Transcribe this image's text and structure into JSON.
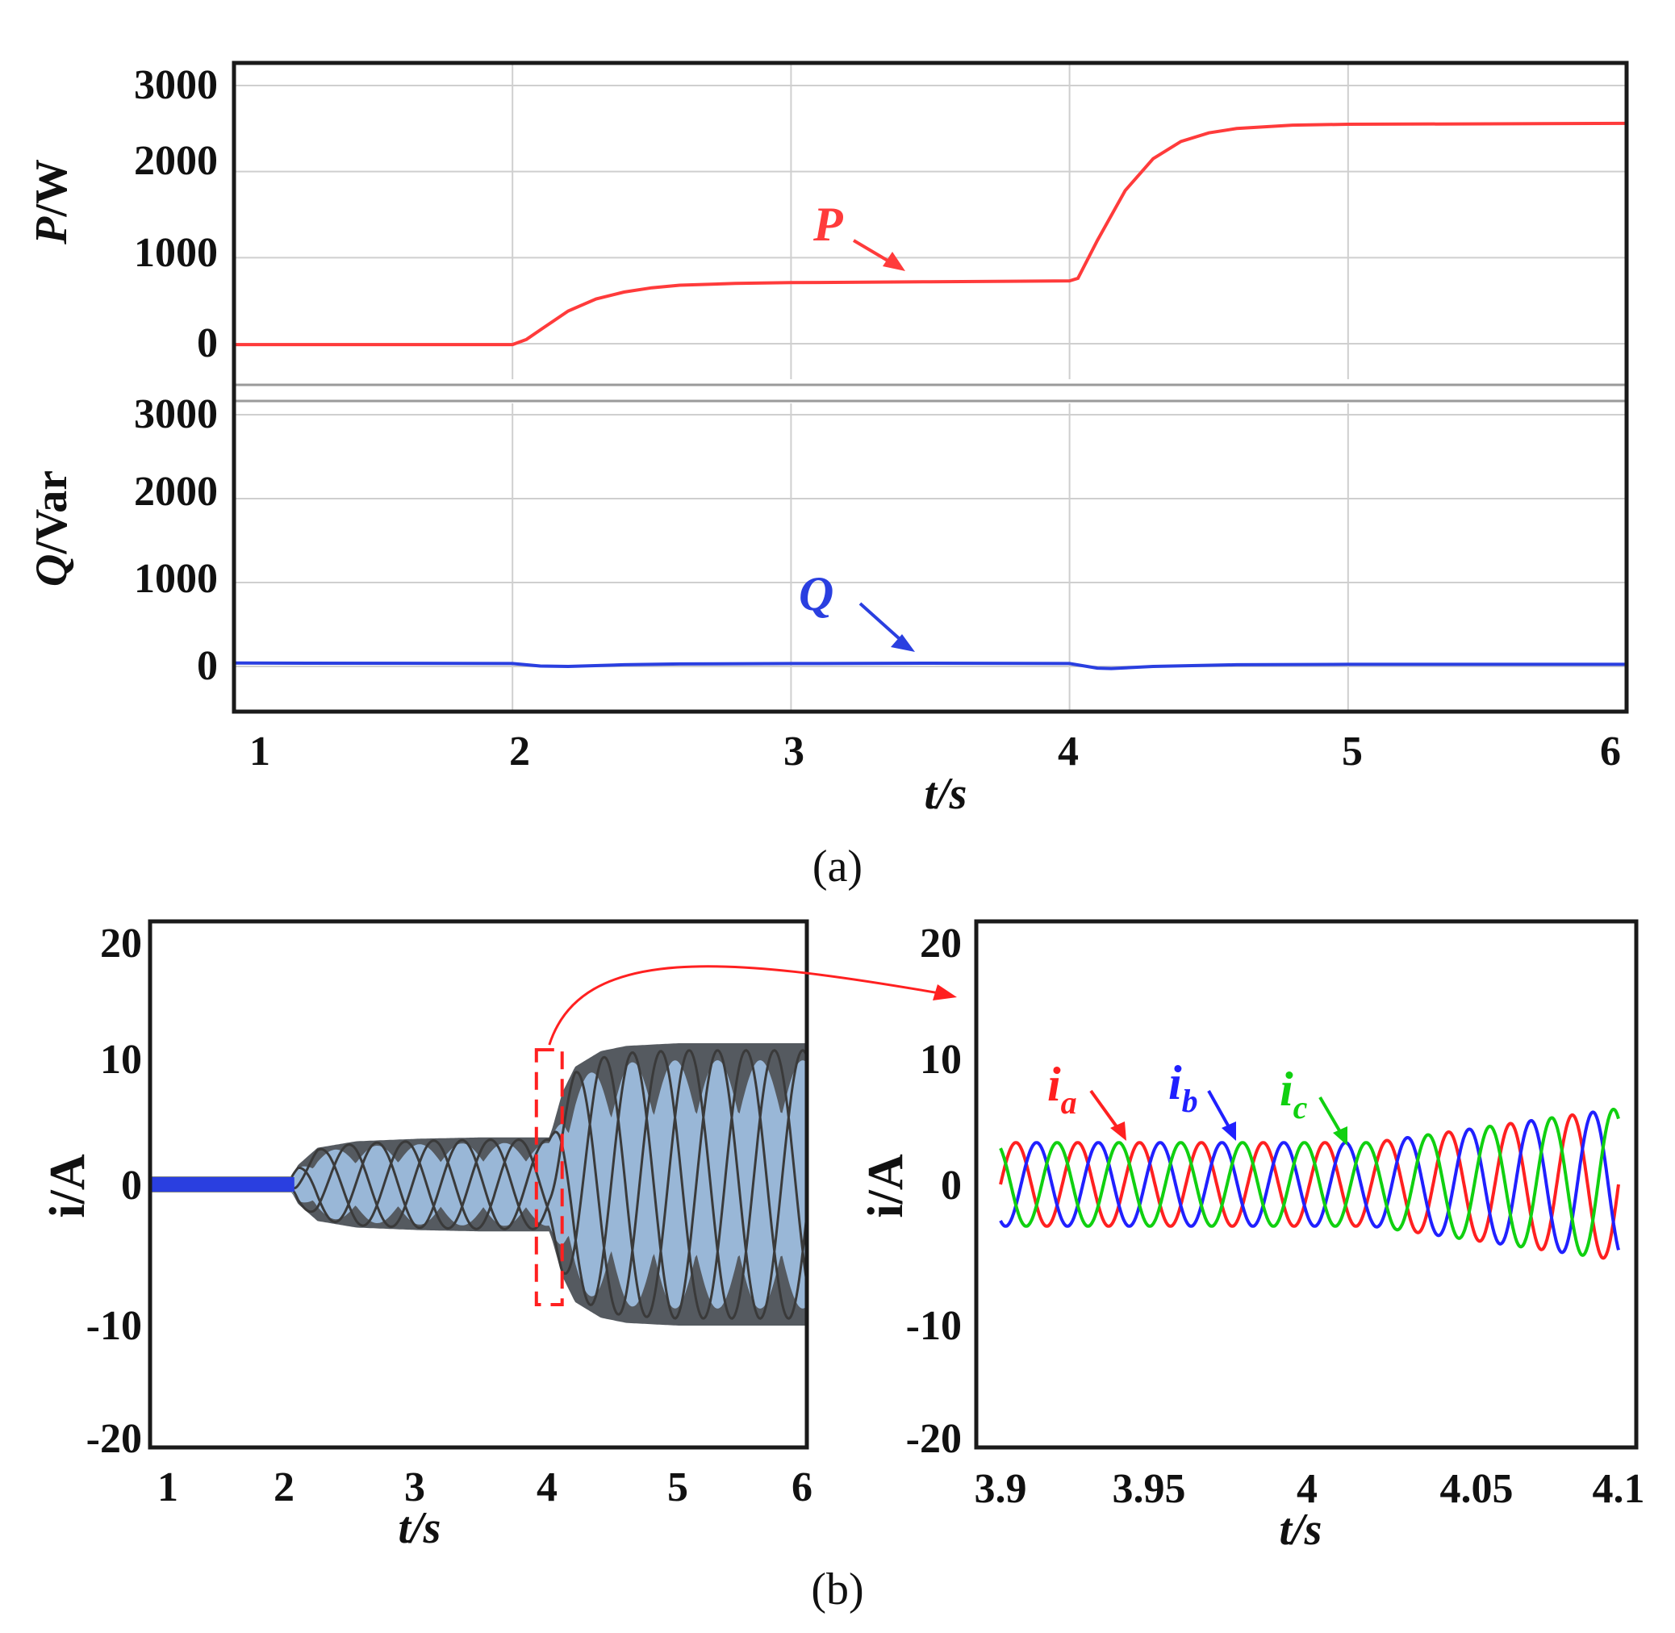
{
  "captions": {
    "a": "(a)",
    "b": "(b)"
  },
  "colors": {
    "P": "#ff3b3b",
    "Q": "#2a3fe0",
    "ia": "#ff2020",
    "ib": "#2020ff",
    "ic": "#10d010",
    "envelope_dark": "#555a60",
    "envelope_light": "#a6c8ec",
    "zoom": "#ff2020"
  },
  "chart_data": [
    {
      "id": "panel-a-P",
      "type": "line",
      "title": "",
      "ylabel_italic": "P",
      "ylabel_unit": "/W",
      "xlabel": "t/s",
      "xlim": [
        1,
        6
      ],
      "ylim": [
        -500,
        3100
      ],
      "yticks": [
        "0",
        "1000",
        "2000",
        "3000"
      ],
      "ytick_values": [
        0,
        1000,
        2000,
        3000
      ],
      "xticks": [
        "1",
        "2",
        "3",
        "4",
        "5",
        "6"
      ],
      "xtick_values": [
        1,
        2,
        3,
        4,
        5,
        6
      ],
      "series": [
        {
          "name": "P",
          "label": "P",
          "x": [
            1.0,
            2.0,
            2.05,
            2.1,
            2.2,
            2.3,
            2.4,
            2.5,
            2.6,
            2.8,
            3.0,
            3.5,
            4.0,
            4.03,
            4.1,
            4.2,
            4.3,
            4.4,
            4.5,
            4.6,
            4.8,
            5.0,
            5.5,
            6.0
          ],
          "y": [
            -10,
            -10,
            50,
            160,
            380,
            520,
            600,
            650,
            680,
            700,
            710,
            720,
            730,
            760,
            1200,
            1780,
            2150,
            2350,
            2450,
            2500,
            2540,
            2550,
            2555,
            2560
          ]
        }
      ]
    },
    {
      "id": "panel-a-Q",
      "type": "line",
      "ylabel_italic": "Q",
      "ylabel_unit": "/Var",
      "xlabel": "t/s",
      "xlim": [
        1,
        6
      ],
      "ylim": [
        -500,
        3100
      ],
      "yticks": [
        "0",
        "1000",
        "2000",
        "3000"
      ],
      "ytick_values": [
        0,
        1000,
        2000,
        3000
      ],
      "xticks": [
        "1",
        "2",
        "3",
        "4",
        "5",
        "6"
      ],
      "xtick_values": [
        1,
        2,
        3,
        4,
        5,
        6
      ],
      "series": [
        {
          "name": "Q",
          "label": "Q",
          "x": [
            1.0,
            2.0,
            2.1,
            2.2,
            2.4,
            2.6,
            3.0,
            3.5,
            4.0,
            4.1,
            4.15,
            4.3,
            4.6,
            5.0,
            6.0
          ],
          "y": [
            40,
            35,
            5,
            0,
            20,
            30,
            35,
            38,
            35,
            -20,
            -25,
            0,
            20,
            25,
            25
          ]
        }
      ]
    },
    {
      "id": "panel-b-left",
      "type": "area",
      "ylabel": "i/A",
      "xlabel": "t/s",
      "xlim": [
        0.9,
        6
      ],
      "ylim": [
        -20.5,
        20.2
      ],
      "yticks": [
        "20",
        "10",
        "0",
        "-10",
        "-20"
      ],
      "ytick_values": [
        20,
        10,
        0,
        -10,
        -20
      ],
      "xticks": [
        "1",
        "2",
        "3",
        "4",
        "5",
        "6"
      ],
      "xtick_values": [
        1,
        2,
        3,
        4,
        5,
        6
      ],
      "series": [
        {
          "name": "current envelope (three-phase)",
          "x": [
            0.9,
            2.0,
            2.05,
            2.2,
            2.5,
            3.0,
            3.5,
            4.0,
            4.03,
            4.1,
            4.2,
            4.4,
            4.6,
            5.0,
            6.0
          ],
          "amplitude": [
            0.6,
            0.6,
            1.5,
            2.8,
            3.3,
            3.5,
            3.6,
            3.6,
            4.5,
            7.0,
            9.0,
            10.2,
            10.6,
            10.8,
            10.8
          ]
        }
      ],
      "zoom_box": {
        "t": [
          3.9,
          4.1
        ],
        "i": [
          -9.2,
          10.3
        ]
      }
    },
    {
      "id": "panel-b-right",
      "type": "line",
      "ylabel": "i/A",
      "xlabel": "t/s",
      "xlim": [
        3.9,
        4.1
      ],
      "ylim": [
        -20.5,
        20.2
      ],
      "yticks": [
        "20",
        "10",
        "0",
        "-10",
        "-20"
      ],
      "ytick_values": [
        20,
        10,
        0,
        -10,
        -20
      ],
      "xticks": [
        "3.9",
        "3.95",
        "4",
        "4.05",
        "4.1"
      ],
      "xtick_values": [
        3.9,
        3.95,
        4.0,
        4.05,
        4.1
      ],
      "frequency_hz": 50,
      "amplitude_before": 3.2,
      "amplitude_after": 5.8,
      "step_time": 4.02,
      "series": [
        {
          "name": "ia",
          "label_main": "i",
          "label_sub": "a",
          "phase_deg": 0
        },
        {
          "name": "ib",
          "label_main": "i",
          "label_sub": "b",
          "phase_deg": -120
        },
        {
          "name": "ic",
          "label_main": "i",
          "label_sub": "c",
          "phase_deg": 120
        }
      ]
    }
  ]
}
